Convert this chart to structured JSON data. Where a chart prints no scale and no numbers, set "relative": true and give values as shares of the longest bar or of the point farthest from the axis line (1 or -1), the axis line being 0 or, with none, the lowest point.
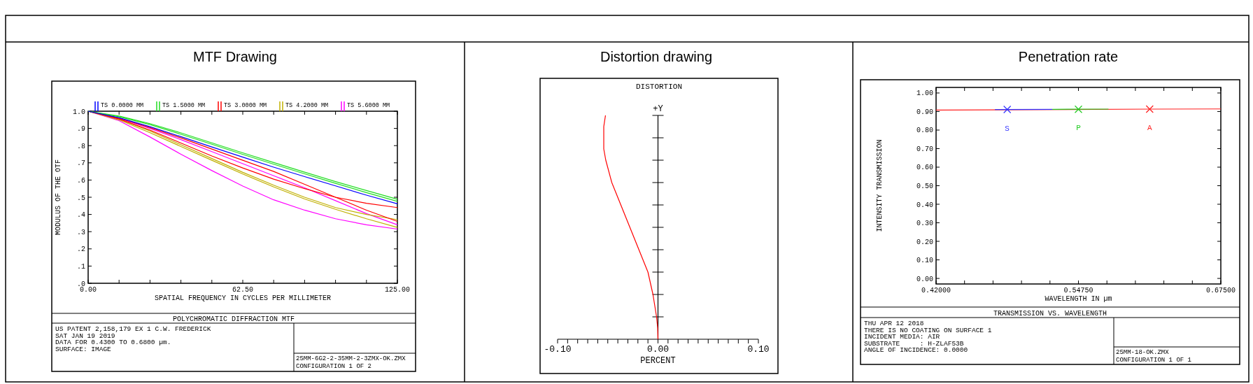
{
  "chart_data": [
    {
      "type": "line",
      "title": "MTF Drawing",
      "subtitle": "POLYCHROMATIC DIFFRACTION MTF",
      "xlabel": "SPATIAL FREQUENCY IN CYCLES PER MILLIMETER",
      "ylabel": "MODULUS OF THE OTF",
      "legend": "top",
      "grid": false,
      "x": [
        0,
        12.5,
        25,
        37.5,
        50,
        62.5,
        75,
        87.5,
        100,
        112.5,
        125
      ],
      "xlim": [
        0,
        125
      ],
      "xticks": [
        {
          "value": 0,
          "label": "0.00"
        },
        {
          "value": 12.5,
          "label": null
        },
        {
          "value": 25,
          "label": null
        },
        {
          "value": 37.5,
          "label": null
        },
        {
          "value": 50,
          "label": null
        },
        {
          "value": 62.5,
          "label": "62.50"
        },
        {
          "value": 75,
          "label": null
        },
        {
          "value": 87.5,
          "label": null
        },
        {
          "value": 100,
          "label": null
        },
        {
          "value": 112.5,
          "label": null
        },
        {
          "value": 125,
          "label": "125.00"
        }
      ],
      "ylim": [
        0,
        1
      ],
      "yticks": [
        {
          "value": 0,
          "label": ".0"
        },
        {
          "value": 0.1,
          "label": ".1"
        },
        {
          "value": 0.2,
          "label": ".2"
        },
        {
          "value": 0.3,
          "label": ".3"
        },
        {
          "value": 0.4,
          "label": ".4"
        },
        {
          "value": 0.5,
          "label": ".5"
        },
        {
          "value": 0.6,
          "label": ".6"
        },
        {
          "value": 0.7,
          "label": ".7"
        },
        {
          "value": 0.8,
          "label": ".8"
        },
        {
          "value": 0.9,
          "label": ".9"
        },
        {
          "value": 1,
          "label": "1.0"
        }
      ],
      "series": [
        {
          "name": "TS 0.0000 MM",
          "color": "#0000ff",
          "values": [
            1,
            0.962,
            0.91,
            0.852,
            0.792,
            0.733,
            0.675,
            0.62,
            0.566,
            0.512,
            0.462
          ]
        },
        {
          "name": "TS 1.5000 MM",
          "color": "#22dd22",
          "values": [
            1,
            0.972,
            0.928,
            0.874,
            0.816,
            0.758,
            0.702,
            0.646,
            0.591,
            0.539,
            0.488
          ]
        },
        {
          "color": "#22dd22",
          "values": [
            1,
            0.968,
            0.922,
            0.866,
            0.808,
            0.749,
            0.692,
            0.636,
            0.581,
            0.527,
            0.476
          ]
        },
        {
          "name": "TS 3.0000 MM",
          "color": "#ff0000",
          "values": [
            1,
            0.96,
            0.905,
            0.845,
            0.78,
            0.715,
            0.65,
            0.575,
            0.5,
            0.425,
            0.36
          ]
        },
        {
          "color": "#ff0000",
          "values": [
            1,
            0.955,
            0.89,
            0.815,
            0.74,
            0.67,
            0.605,
            0.55,
            0.5,
            0.465,
            0.44
          ]
        },
        {
          "name": "TS 4.2000 MM",
          "color": "#c0b000",
          "values": [
            1,
            0.955,
            0.885,
            0.805,
            0.725,
            0.645,
            0.57,
            0.5,
            0.44,
            0.4,
            0.37
          ]
        },
        {
          "color": "#c0b000",
          "values": [
            1,
            0.95,
            0.875,
            0.795,
            0.715,
            0.635,
            0.56,
            0.49,
            0.43,
            0.375,
            0.325
          ]
        },
        {
          "name": "TS 5.6000 MM",
          "color": "#ff00ff",
          "values": [
            1,
            0.96,
            0.9,
            0.835,
            0.765,
            0.695,
            0.625,
            0.555,
            0.48,
            0.405,
            0.34
          ]
        },
        {
          "color": "#ff00ff",
          "values": [
            1,
            0.945,
            0.85,
            0.75,
            0.655,
            0.565,
            0.485,
            0.425,
            0.375,
            0.34,
            0.315
          ]
        }
      ],
      "annotations": [
        "US PATENT 2,158,179 EX 1 C.W. FREDERICK",
        "SAT JAN 19 2019",
        "DATA FOR 0.4300 TO 0.6800 µm.",
        "SURFACE: IMAGE",
        "25MM-6G2-2-35MM-2-3ZMX-OK.ZMX",
        "CONFIGURATION 1 OF 2"
      ]
    },
    {
      "type": "line",
      "title": "Distortion drawing",
      "subtitle": "DISTORTION",
      "xlabel": "PERCENT",
      "ylabel": "+Y",
      "relative": true,
      "tick_labels": "x",
      "xlim": [
        -0.1,
        0.1
      ],
      "xticks": [
        {
          "value": -0.1,
          "label": "-0.10"
        },
        {
          "value": -0.09,
          "label": null
        },
        {
          "value": -0.08,
          "label": null
        },
        {
          "value": -0.07,
          "label": null
        },
        {
          "value": -0.06,
          "label": null
        },
        {
          "value": -0.05,
          "label": null
        },
        {
          "value": -0.04,
          "label": null
        },
        {
          "value": -0.03,
          "label": null
        },
        {
          "value": -0.02,
          "label": null
        },
        {
          "value": -0.01,
          "label": null
        },
        {
          "value": 0,
          "label": "0.00"
        },
        {
          "value": 0.01,
          "label": null
        },
        {
          "value": 0.02,
          "label": null
        },
        {
          "value": 0.03,
          "label": null
        },
        {
          "value": 0.04,
          "label": null
        },
        {
          "value": 0.05,
          "label": null
        },
        {
          "value": 0.06,
          "label": null
        },
        {
          "value": 0.07,
          "label": null
        },
        {
          "value": 0.08,
          "label": null
        },
        {
          "value": 0.09,
          "label": null
        },
        {
          "value": 0.1,
          "label": "0.10"
        }
      ],
      "series": [
        {
          "color": "#ff0000",
          "x": [
            0,
            -0.0003,
            -0.0014,
            -0.005,
            -0.01,
            -0.019,
            -0.028,
            -0.037,
            -0.046,
            -0.052,
            -0.054,
            -0.054,
            -0.0523
          ],
          "values": [
            0,
            0.05,
            0.1,
            0.2,
            0.3,
            0.4,
            0.5,
            0.6,
            0.7,
            0.8,
            0.85,
            0.95,
            1
          ]
        }
      ]
    },
    {
      "type": "line",
      "title": "Penetration rate",
      "subtitle": "TRANSMISSION VS. WAVELENGTH",
      "xlabel": "WAVELENGTH IN µm",
      "ylabel": "INTENSITY TRANSMISSION",
      "grid": false,
      "xlim": [
        0.42,
        0.675
      ],
      "xticks": [
        {
          "value": 0.42,
          "label": "0.42000"
        },
        {
          "value": 0.4455,
          "label": null
        },
        {
          "value": 0.471,
          "label": null
        },
        {
          "value": 0.4965,
          "label": null
        },
        {
          "value": 0.522,
          "label": null
        },
        {
          "value": 0.5475,
          "label": "0.54750"
        },
        {
          "value": 0.573,
          "label": null
        },
        {
          "value": 0.5985,
          "label": null
        },
        {
          "value": 0.624,
          "label": null
        },
        {
          "value": 0.6495,
          "label": null
        },
        {
          "value": 0.675,
          "label": "0.67500"
        }
      ],
      "ylim": [
        -0.03,
        1.03
      ],
      "yticks": [
        {
          "value": 0,
          "label": "0.00"
        },
        {
          "value": 0.1,
          "label": "0.10"
        },
        {
          "value": 0.2,
          "label": "0.20"
        },
        {
          "value": 0.3,
          "label": "0.30"
        },
        {
          "value": 0.4,
          "label": "0.40"
        },
        {
          "value": 0.5,
          "label": "0.50"
        },
        {
          "value": 0.6,
          "label": "0.60"
        },
        {
          "value": 0.7,
          "label": "0.70"
        },
        {
          "value": 0.8,
          "label": "0.80"
        },
        {
          "value": 0.9,
          "label": "0.90"
        },
        {
          "value": 1,
          "label": "1.00"
        }
      ],
      "series": [
        {
          "type": "scatter",
          "name": "S",
          "marker": "cross",
          "color": "#3333ff",
          "x": [
            0.4837
          ],
          "values": [
            0.911
          ]
        },
        {
          "type": "scatter",
          "name": "P",
          "marker": "cross",
          "color": "#22cc22",
          "x": [
            0.5475
          ],
          "values": [
            0.912
          ]
        },
        {
          "type": "scatter",
          "name": "A",
          "marker": "cross",
          "color": "#ff2020",
          "x": [
            0.6113
          ],
          "values": [
            0.913
          ]
        },
        {
          "color": "#22cc22",
          "x": [
            0.5241,
            0.5744
          ],
          "values": [
            0.912,
            0.913
          ]
        },
        {
          "color": "#3333ff",
          "x": [
            0.4727,
            0.5241
          ],
          "values": [
            0.911,
            0.912
          ]
        },
        {
          "color": "#ff2020",
          "x": [
            0.42,
            0.6113,
            0.675
          ],
          "values": [
            0.908,
            0.913,
            0.914
          ]
        }
      ],
      "annotations": [
        "THU APR 12 2018",
        "THERE IS NO COATING ON SURFACE 1",
        "INCIDENT MEDIA: AIR",
        "SUBSTRATE     : H-ZLAF53B",
        "ANGLE OF INCIDENCE: 0.0000",
        "25MM-18-OK.ZMX",
        "CONFIGURATION 1 OF 1"
      ]
    }
  ]
}
